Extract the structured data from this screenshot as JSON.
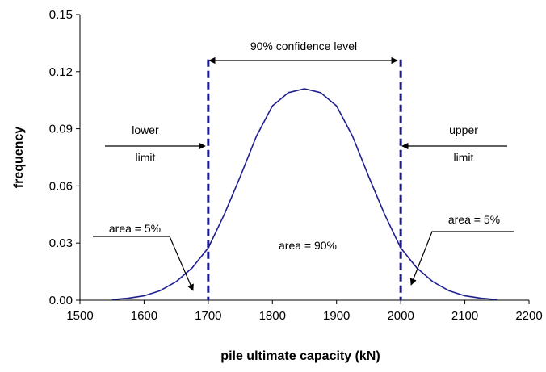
{
  "chart_data": {
    "type": "line",
    "title": "",
    "xlabel": "pile ultimate capacity (kN)",
    "ylabel": "frequency",
    "xlim": [
      1500,
      2200
    ],
    "ylim": [
      0,
      0.15
    ],
    "x_ticks": [
      1500,
      1600,
      1700,
      1800,
      1900,
      2000,
      2100,
      2200
    ],
    "y_ticks": [
      0.0,
      0.03,
      0.06,
      0.09,
      0.12,
      0.15
    ],
    "x_tick_labels": [
      "1500",
      "1600",
      "1700",
      "1800",
      "1900",
      "2000",
      "2100",
      "2200"
    ],
    "y_tick_labels": [
      "0.00",
      "0.03",
      "0.06",
      "0.09",
      "0.12",
      "0.15"
    ],
    "grid": false,
    "colors": {
      "curve": "#1f1f8f",
      "limits": "#1a1a8c",
      "axis": "#000000"
    },
    "series": [
      {
        "x": [
          1550,
          1575,
          1600,
          1625,
          1650,
          1675,
          1700,
          1725,
          1750,
          1775,
          1800,
          1825,
          1850,
          1875,
          1900,
          1925,
          1950,
          1975,
          2000,
          2025,
          2050,
          2075,
          2100,
          2125,
          2150
        ],
        "y": [
          0.0003,
          0.001,
          0.0023,
          0.005,
          0.0097,
          0.017,
          0.0275,
          0.045,
          0.065,
          0.086,
          0.102,
          0.109,
          0.111,
          0.109,
          0.102,
          0.086,
          0.065,
          0.045,
          0.0275,
          0.017,
          0.0097,
          0.005,
          0.0023,
          0.001,
          0.0003
        ]
      }
    ],
    "limits": [
      {
        "label": "lower limit",
        "x": 1700
      },
      {
        "label": "upper limit",
        "x": 2000
      }
    ],
    "annotations": {
      "confidence": "90% confidence level",
      "lower_line1": "lower",
      "lower_line2": "limit",
      "upper_line1": "upper",
      "upper_line2": "limit",
      "area_left": "area = 5%",
      "area_center": "area = 90%",
      "area_right": "area = 5%"
    }
  }
}
